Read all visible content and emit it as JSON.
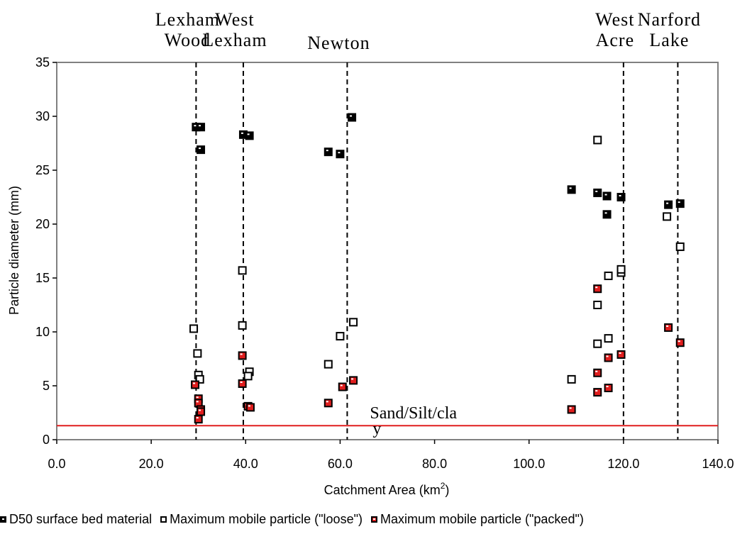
{
  "chart_data": {
    "type": "scatter",
    "title": "",
    "xlabel": "Catchment Area (km",
    "xlabel_sup": "2",
    "xlabel_end": ")",
    "ylabel": "Particle diameter (mm)",
    "xlim": [
      0,
      140
    ],
    "ylim": [
      0,
      35
    ],
    "x_ticks": [
      "0.0",
      "20.0",
      "40.0",
      "60.0",
      "80.0",
      "100.0",
      "120.0",
      "140.0"
    ],
    "y_ticks": [
      "0",
      "5",
      "10",
      "15",
      "20",
      "25",
      "30",
      "35"
    ],
    "grid": false,
    "legend_position": "bottom",
    "sites": [
      {
        "lines": [
          "Lexham",
          "Wood"
        ],
        "x": 29.5
      },
      {
        "lines": [
          "West",
          "Lexham"
        ],
        "x": 39.5
      },
      {
        "lines": [
          "Newton"
        ],
        "x": 61.5
      },
      {
        "lines": [
          "West",
          "Acre"
        ],
        "x": 120.0
      },
      {
        "lines": [
          "Narford",
          "Lake"
        ],
        "x": 131.5
      }
    ],
    "reference_line": {
      "y": 1.3,
      "label": "Sand/Silt/cla",
      "label_tail": "y",
      "color": "#e01e1e"
    },
    "series": [
      {
        "name": "D50 surface bed material",
        "marker": "filled-black-square",
        "color": "#000000",
        "points": [
          [
            29.5,
            29.0
          ],
          [
            30.5,
            29.0
          ],
          [
            30.5,
            26.9
          ],
          [
            39.5,
            28.3
          ],
          [
            40.8,
            28.2
          ],
          [
            57.5,
            26.7
          ],
          [
            60.0,
            26.5
          ],
          [
            62.5,
            29.9
          ],
          [
            109.0,
            23.2
          ],
          [
            114.5,
            22.9
          ],
          [
            116.5,
            22.6
          ],
          [
            119.5,
            22.5
          ],
          [
            116.5,
            20.9
          ],
          [
            129.5,
            21.8
          ],
          [
            132.0,
            21.9
          ]
        ]
      },
      {
        "name": "Maximum mobile particle (\"loose\")",
        "marker": "open-square",
        "color": "#000000",
        "points": [
          [
            29.0,
            10.3
          ],
          [
            29.8,
            8.0
          ],
          [
            30.0,
            6.0
          ],
          [
            30.3,
            5.6
          ],
          [
            39.3,
            15.7
          ],
          [
            39.3,
            10.6
          ],
          [
            40.8,
            6.3
          ],
          [
            40.5,
            5.9
          ],
          [
            57.5,
            7.0
          ],
          [
            60.0,
            9.6
          ],
          [
            62.8,
            10.9
          ],
          [
            109.0,
            5.6
          ],
          [
            114.5,
            27.8
          ],
          [
            114.5,
            12.5
          ],
          [
            114.5,
            8.9
          ],
          [
            116.8,
            9.4
          ],
          [
            116.8,
            15.2
          ],
          [
            119.5,
            15.5
          ],
          [
            119.5,
            15.8
          ],
          [
            129.2,
            20.7
          ],
          [
            132.0,
            17.9
          ]
        ]
      },
      {
        "name": "Maximum mobile particle (\"packed\")",
        "marker": "filled-red-square",
        "color": "#e01e1e",
        "points": [
          [
            29.3,
            5.1
          ],
          [
            30.0,
            3.8
          ],
          [
            30.0,
            3.4
          ],
          [
            30.5,
            2.8
          ],
          [
            30.5,
            2.6
          ],
          [
            30.0,
            1.9
          ],
          [
            39.3,
            7.8
          ],
          [
            39.3,
            5.2
          ],
          [
            40.5,
            3.1
          ],
          [
            41.0,
            3.0
          ],
          [
            57.5,
            3.4
          ],
          [
            60.5,
            4.9
          ],
          [
            62.8,
            5.5
          ],
          [
            109.0,
            2.8
          ],
          [
            114.5,
            14.0
          ],
          [
            114.5,
            6.2
          ],
          [
            114.5,
            4.4
          ],
          [
            116.8,
            4.8
          ],
          [
            116.8,
            7.6
          ],
          [
            119.5,
            7.9
          ],
          [
            129.5,
            10.4
          ],
          [
            132.0,
            9.0
          ]
        ]
      }
    ]
  }
}
